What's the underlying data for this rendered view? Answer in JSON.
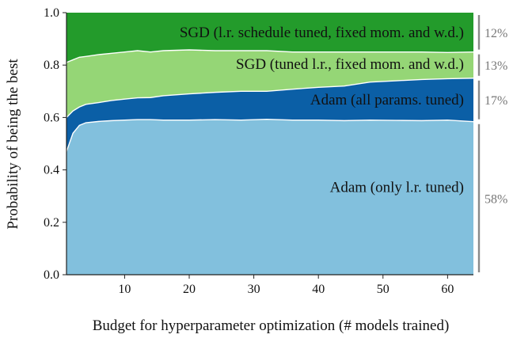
{
  "chart_data": {
    "type": "area",
    "stacked": true,
    "normalized": true,
    "title": "",
    "xlabel": "Budget for hyperparameter optimization (# models trained)",
    "ylabel": "Probability of being the best",
    "xlim": [
      1,
      64
    ],
    "ylim": [
      0.0,
      1.0
    ],
    "xticks": [
      10,
      20,
      30,
      40,
      50,
      60
    ],
    "yticks": [
      0.0,
      0.2,
      0.4,
      0.6,
      0.8,
      1.0
    ],
    "ytick_labels": [
      "0.0",
      "0.2",
      "0.4",
      "0.6",
      "0.8",
      "1.0"
    ],
    "grid": false,
    "legend": "none",
    "x": [
      1,
      2,
      3,
      4,
      6,
      8,
      10,
      12,
      14,
      16,
      20,
      24,
      28,
      32,
      36,
      40,
      44,
      48,
      52,
      56,
      60,
      64
    ],
    "series": [
      {
        "name": "Adam (only l.r. tuned)",
        "color": "#82c0dd",
        "share_label": "58%",
        "values": [
          0.47,
          0.54,
          0.57,
          0.58,
          0.585,
          0.588,
          0.59,
          0.592,
          0.592,
          0.59,
          0.59,
          0.592,
          0.59,
          0.593,
          0.59,
          0.59,
          0.588,
          0.59,
          0.589,
          0.588,
          0.59,
          0.584
        ]
      },
      {
        "name": "Adam (all params. tuned)",
        "color": "#0b5fa6",
        "share_label": "17%",
        "values": [
          0.13,
          0.085,
          0.07,
          0.07,
          0.072,
          0.077,
          0.08,
          0.083,
          0.084,
          0.093,
          0.1,
          0.104,
          0.11,
          0.107,
          0.118,
          0.125,
          0.132,
          0.145,
          0.151,
          0.157,
          0.158,
          0.166
        ]
      },
      {
        "name": "SGD (tuned l.r., fixed mom. and w.d.)",
        "color": "#95d676",
        "share_label": "13%",
        "values": [
          0.21,
          0.195,
          0.19,
          0.183,
          0.183,
          0.18,
          0.18,
          0.18,
          0.174,
          0.172,
          0.168,
          0.159,
          0.155,
          0.155,
          0.142,
          0.135,
          0.13,
          0.115,
          0.11,
          0.105,
          0.1,
          0.1
        ]
      },
      {
        "name": "SGD (l.r. schedule tuned, fixed mom. and w.d.)",
        "color": "#239b2b",
        "share_label": "12%",
        "values": [
          0.19,
          0.18,
          0.17,
          0.167,
          0.16,
          0.155,
          0.15,
          0.145,
          0.15,
          0.145,
          0.142,
          0.145,
          0.145,
          0.145,
          0.15,
          0.15,
          0.15,
          0.15,
          0.15,
          0.15,
          0.152,
          0.15
        ]
      }
    ]
  }
}
